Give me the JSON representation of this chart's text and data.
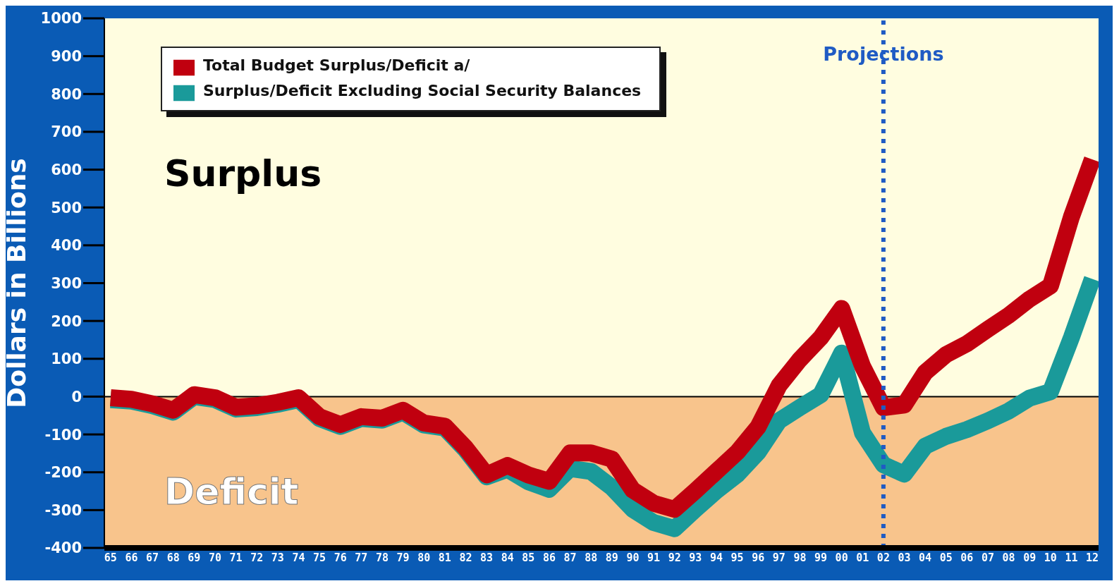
{
  "chart_data": {
    "type": "line",
    "ylabel": "Dollars in Billions",
    "categories": [
      "65",
      "66",
      "67",
      "68",
      "69",
      "70",
      "71",
      "72",
      "73",
      "74",
      "75",
      "76",
      "77",
      "78",
      "79",
      "80",
      "81",
      "82",
      "83",
      "84",
      "85",
      "86",
      "87",
      "88",
      "89",
      "90",
      "91",
      "92",
      "93",
      "94",
      "95",
      "96",
      "97",
      "98",
      "99",
      "00",
      "01",
      "02",
      "03",
      "04",
      "05",
      "06",
      "07",
      "08",
      "09",
      "10",
      "11",
      "12"
    ],
    "series": [
      {
        "name": "Total Budget Surplus/Deficit a/",
        "color": "#c0000f",
        "values": [
          -3,
          -7,
          -19,
          -36,
          5,
          -3,
          -28,
          -24,
          -15,
          -3,
          -53,
          -74,
          -53,
          -57,
          -36,
          -70,
          -78,
          -136,
          -207,
          -182,
          -207,
          -224,
          -149,
          -149,
          -165,
          -247,
          -282,
          -298,
          -249,
          -198,
          -147,
          -80,
          29,
          98,
          156,
          233,
          80,
          -29,
          -22,
          64,
          111,
          140,
          178,
          215,
          258,
          293,
          475,
          627
        ]
      },
      {
        "name": "Surplus/Deficit Excluding Social Security Balances",
        "color": "#1a9a9a",
        "values": [
          -8,
          -12,
          -24,
          -41,
          0,
          -8,
          -33,
          -29,
          -20,
          -8,
          -58,
          -79,
          -58,
          -62,
          -41,
          -75,
          -83,
          -141,
          -212,
          -192,
          -225,
          -245,
          -190,
          -198,
          -240,
          -298,
          -333,
          -349,
          -298,
          -249,
          -206,
          -147,
          -64,
          -29,
          5,
          115,
          -96,
          -180,
          -205,
          -131,
          -105,
          -87,
          -64,
          -38,
          -4,
          13,
          156,
          311
        ]
      }
    ],
    "ylim": [
      -400,
      1000
    ],
    "yticks": [
      -400,
      -300,
      -200,
      -100,
      0,
      100,
      200,
      300,
      400,
      500,
      600,
      700,
      800,
      900,
      1000
    ],
    "grid": false,
    "legend": "top left",
    "marker": "none",
    "line_style": "solid",
    "ref_lines": [
      {
        "axis": "x",
        "value": "02",
        "label": "Projections",
        "color": "#1f5bc4",
        "line_style": "dotted"
      }
    ],
    "bands": [
      {
        "axis": "y",
        "from": 0,
        "to": 1000,
        "label": "Surplus",
        "color": "#fffde0"
      },
      {
        "axis": "y",
        "from": -400,
        "to": 0,
        "label": "Deficit",
        "color": "#f8c48c"
      }
    ]
  }
}
